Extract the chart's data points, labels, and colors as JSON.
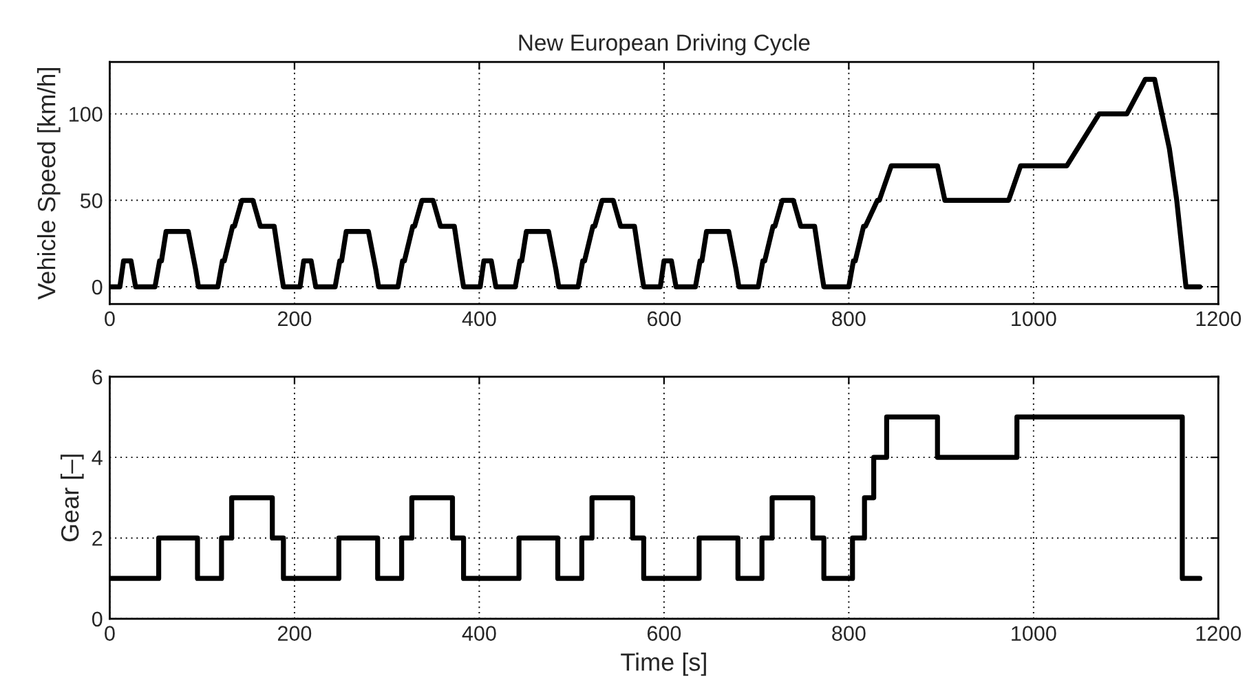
{
  "chart_data": [
    {
      "type": "line",
      "title": "New European Driving Cycle",
      "ylabel": "Vehicle Speed [km/h]",
      "xlim": [
        0,
        1200
      ],
      "xticks": [
        0,
        200,
        400,
        600,
        800,
        1000,
        1200
      ],
      "ylim": [
        -10,
        130
      ],
      "yticks": [
        0,
        50,
        100
      ],
      "grid": true,
      "line_style": "solid",
      "series": [
        {
          "color": "#000000",
          "x": [
            0,
            11,
            15,
            23,
            28,
            49,
            54,
            56,
            61,
            85,
            93,
            96,
            117,
            122,
            124,
            133,
            135,
            143,
            155,
            163,
            176,
            178,
            185,
            188,
            195,
            206,
            210,
            218,
            223,
            244,
            249,
            251,
            256,
            280,
            288,
            291,
            312,
            317,
            319,
            328,
            330,
            338,
            350,
            358,
            371,
            373,
            380,
            383,
            390,
            401,
            405,
            413,
            418,
            439,
            444,
            446,
            451,
            475,
            483,
            486,
            507,
            512,
            514,
            523,
            525,
            533,
            545,
            553,
            566,
            568,
            575,
            578,
            585,
            596,
            600,
            608,
            613,
            634,
            639,
            641,
            646,
            670,
            678,
            681,
            702,
            707,
            709,
            718,
            720,
            728,
            740,
            748,
            761,
            763,
            770,
            773,
            780,
            800,
            805,
            807,
            816,
            818,
            831,
            833,
            846,
            896,
            904,
            973,
            986,
            1036,
            1071,
            1101,
            1121,
            1131,
            1147,
            1155,
            1165,
            1180
          ],
          "values": [
            0,
            0,
            15,
            15,
            0,
            0,
            15,
            15,
            32,
            32,
            10,
            0,
            0,
            15,
            15,
            35,
            35,
            50,
            50,
            35,
            35,
            35,
            10,
            0,
            0,
            0,
            15,
            15,
            0,
            0,
            15,
            15,
            32,
            32,
            10,
            0,
            0,
            15,
            15,
            35,
            35,
            50,
            50,
            35,
            35,
            35,
            10,
            0,
            0,
            0,
            15,
            15,
            0,
            0,
            15,
            15,
            32,
            32,
            10,
            0,
            0,
            15,
            15,
            35,
            35,
            50,
            50,
            35,
            35,
            35,
            10,
            0,
            0,
            0,
            15,
            15,
            0,
            0,
            15,
            15,
            32,
            32,
            10,
            0,
            0,
            15,
            15,
            35,
            35,
            50,
            50,
            35,
            35,
            35,
            10,
            0,
            0,
            0,
            15,
            15,
            35,
            35,
            50,
            50,
            70,
            70,
            50,
            50,
            70,
            70,
            100,
            100,
            120,
            120,
            80,
            50,
            0,
            0
          ]
        }
      ]
    },
    {
      "type": "line",
      "xlabel": "Time [s]",
      "ylabel": "Gear [–]",
      "xlim": [
        0,
        1200
      ],
      "xticks": [
        0,
        200,
        400,
        600,
        800,
        1000,
        1200
      ],
      "ylim": [
        0,
        6
      ],
      "yticks": [
        0,
        2,
        4,
        6
      ],
      "grid": true,
      "line_style": "solid",
      "series": [
        {
          "color": "#000000",
          "x": [
            0,
            53,
            53,
            95,
            95,
            121,
            121,
            132,
            132,
            176,
            176,
            188,
            188,
            248,
            248,
            290,
            290,
            316,
            316,
            327,
            327,
            371,
            371,
            383,
            383,
            443,
            443,
            485,
            485,
            511,
            511,
            522,
            522,
            566,
            566,
            578,
            578,
            638,
            638,
            680,
            680,
            706,
            706,
            717,
            717,
            761,
            761,
            773,
            773,
            804,
            804,
            817,
            817,
            827,
            827,
            841,
            841,
            896,
            896,
            982,
            982,
            1161,
            1161,
            1180
          ],
          "values": [
            1,
            1,
            2,
            2,
            1,
            1,
            2,
            2,
            3,
            3,
            2,
            2,
            1,
            1,
            2,
            2,
            1,
            1,
            2,
            2,
            3,
            3,
            2,
            2,
            1,
            1,
            2,
            2,
            1,
            1,
            2,
            2,
            3,
            3,
            2,
            2,
            1,
            1,
            2,
            2,
            1,
            1,
            2,
            2,
            3,
            3,
            2,
            2,
            1,
            1,
            2,
            2,
            3,
            3,
            4,
            4,
            5,
            5,
            4,
            4,
            5,
            5,
            1,
            1
          ]
        }
      ]
    }
  ]
}
